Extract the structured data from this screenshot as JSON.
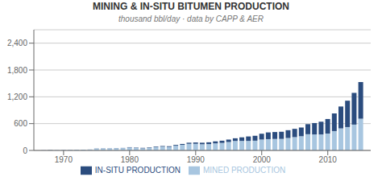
{
  "chart_data": {
    "type": "bar",
    "title": "MINING & IN-SITU BITUMEN PRODUCTION",
    "subtitle": "thousand bbl/day · data by CAPP & AER",
    "stacked": true,
    "grid": true,
    "legend": "bottom",
    "x": [
      1967,
      1968,
      1969,
      1970,
      1971,
      1972,
      1973,
      1974,
      1975,
      1976,
      1977,
      1978,
      1979,
      1980,
      1981,
      1982,
      1983,
      1984,
      1985,
      1986,
      1987,
      1988,
      1989,
      1990,
      1991,
      1992,
      1993,
      1994,
      1995,
      1996,
      1997,
      1998,
      1999,
      2000,
      2001,
      2002,
      2003,
      2004,
      2005,
      2006,
      2007,
      2008,
      2009,
      2010,
      2011,
      2012,
      2013,
      2014,
      2015
    ],
    "xlim": [
      1965.5,
      2016.5
    ],
    "xticks": [
      1970,
      1980,
      1990,
      2000,
      2010
    ],
    "ylim": [
      0,
      2700
    ],
    "yticks": [
      0,
      600,
      {
        "value": 1200,
        "label": "1,200"
      },
      {
        "value": 1800,
        "label": "1,800"
      },
      {
        "value": 2400,
        "label": "2,400"
      }
    ],
    "series": [
      {
        "name": "MINED PRODUCTION",
        "color": "#a8c6e0",
        "values": [
          5,
          6,
          7,
          10,
          12,
          14,
          16,
          18,
          42,
          45,
          46,
          48,
          52,
          65,
          55,
          48,
          58,
          75,
          85,
          78,
          105,
          125,
          148,
          148,
          138,
          142,
          158,
          168,
          188,
          212,
          213,
          213,
          218,
          244,
          253,
          257,
          258,
          278,
          298,
          318,
          363,
          358,
          358,
          378,
          433,
          493,
          523,
          578,
          710
        ]
      },
      {
        "name": "IN-SITU PRODUCTION",
        "color": "#2b4c7e",
        "values": [
          1,
          1,
          1,
          2,
          2,
          2,
          2,
          2,
          3,
          3,
          3,
          4,
          4,
          8,
          8,
          10,
          10,
          12,
          14,
          16,
          18,
          20,
          25,
          30,
          35,
          40,
          45,
          50,
          55,
          60,
          80,
          100,
          110,
          130,
          150,
          155,
          160,
          175,
          185,
          195,
          225,
          255,
          285,
          325,
          395,
          490,
          590,
          710,
          820
        ]
      }
    ]
  }
}
